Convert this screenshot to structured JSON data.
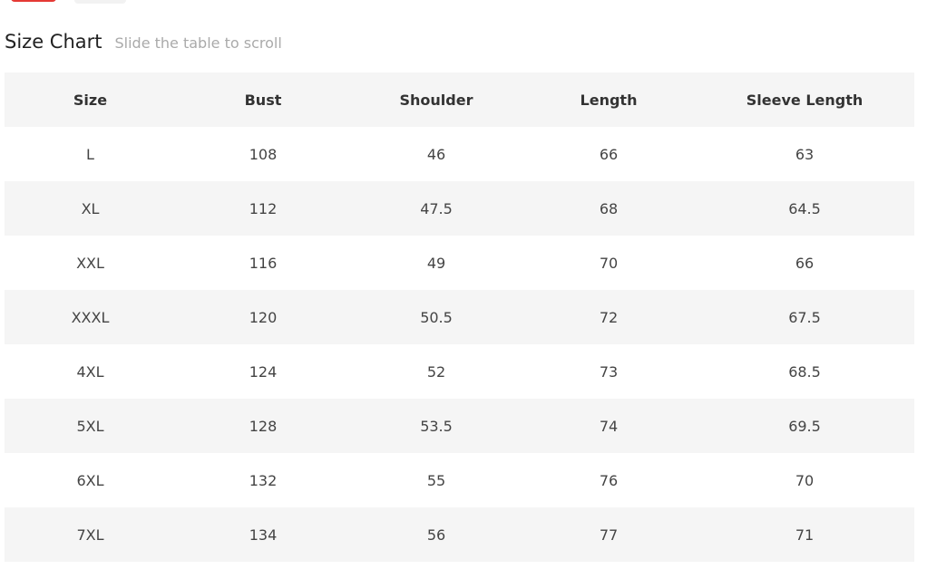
{
  "title": "Size Chart",
  "hint": "Slide the table to scroll",
  "colors": {
    "accent": "#e53935",
    "stripe": "#f5f5f5"
  },
  "table": {
    "headers": [
      "Size",
      "Bust",
      "Shoulder",
      "Length",
      "Sleeve Length"
    ],
    "rows": [
      [
        "L",
        "108",
        "46",
        "66",
        "63"
      ],
      [
        "XL",
        "112",
        "47.5",
        "68",
        "64.5"
      ],
      [
        "XXL",
        "116",
        "49",
        "70",
        "66"
      ],
      [
        "XXXL",
        "120",
        "50.5",
        "72",
        "67.5"
      ],
      [
        "4XL",
        "124",
        "52",
        "73",
        "68.5"
      ],
      [
        "5XL",
        "128",
        "53.5",
        "74",
        "69.5"
      ],
      [
        "6XL",
        "132",
        "55",
        "76",
        "70"
      ],
      [
        "7XL",
        "134",
        "56",
        "77",
        "71"
      ]
    ]
  }
}
